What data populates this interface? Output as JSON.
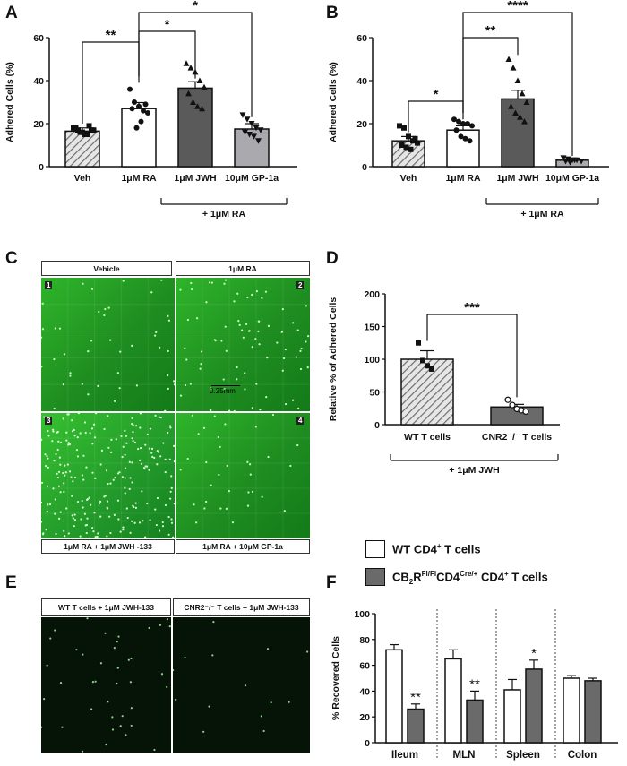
{
  "panels": {
    "A": "A",
    "B": "B",
    "C": "C",
    "D": "D",
    "E": "E",
    "F": "F"
  },
  "colors": {
    "veh": "#c8c8c8",
    "ra": "#ffffff",
    "jwh": "#5a5a5a",
    "gp": "#a9a9ae",
    "micro_green": "#2fae2a",
    "micro_dark": "#07170a",
    "wt": "#ffffff",
    "ko": "#6a6a6a"
  },
  "chart_data": [
    {
      "id": "A",
      "type": "bar",
      "ylabel": "Adhered Cells (%)",
      "ylim": [
        0,
        60
      ],
      "yticks": [
        0,
        20,
        40,
        60
      ],
      "categories": [
        "Veh",
        "1μM RA",
        "1μM JWH",
        "10μM GP-1a"
      ],
      "values": [
        16.5,
        27,
        36.5,
        17.5
      ],
      "sem": [
        1.5,
        2.8,
        3,
        2.5
      ],
      "group_label": "+ 1μM RA",
      "points": [
        [
          18,
          17,
          16,
          15,
          17,
          18,
          16,
          15,
          19,
          17
        ],
        [
          36,
          30,
          28,
          26,
          25,
          27,
          18,
          21,
          29
        ],
        [
          48,
          46,
          44,
          40,
          37,
          34,
          30,
          28,
          27
        ],
        [
          24,
          22,
          20,
          18,
          17,
          16,
          15,
          14,
          12
        ]
      ],
      "markers": [
        "square",
        "circle",
        "triangle",
        "tri-down"
      ],
      "significance": [
        {
          "from": 0,
          "to": 1,
          "label": "**"
        },
        {
          "from": 1,
          "to": 2,
          "label": "*"
        },
        {
          "from": 1,
          "to": 3,
          "label": "*"
        }
      ]
    },
    {
      "id": "B",
      "type": "bar",
      "ylabel": "Adhered Cells (%)",
      "ylim": [
        0,
        60
      ],
      "yticks": [
        0,
        20,
        40,
        60
      ],
      "categories": [
        "Veh",
        "1μM RA",
        "1μM JWH",
        "10μM GP-1a"
      ],
      "values": [
        12,
        17,
        31.5,
        3
      ],
      "sem": [
        2,
        2,
        4,
        0.5
      ],
      "group_label": "+ 1μM RA",
      "points": [
        [
          19,
          18,
          14,
          12,
          11,
          10,
          9,
          8,
          13
        ],
        [
          22,
          21,
          20,
          20,
          19,
          17,
          14,
          13,
          12
        ],
        [
          50,
          46,
          40,
          34,
          30,
          28,
          25,
          23,
          21
        ],
        [
          4,
          3.5,
          3,
          3,
          2.5,
          2.5,
          2,
          3
        ]
      ],
      "markers": [
        "square",
        "circle",
        "triangle",
        "tri-down"
      ],
      "significance": [
        {
          "from": 0,
          "to": 1,
          "label": "*"
        },
        {
          "from": 1,
          "to": 2,
          "label": "**"
        },
        {
          "from": 1,
          "to": 3,
          "label": "****"
        }
      ]
    },
    {
      "id": "D",
      "type": "bar",
      "ylabel": "Relative % of Adhered Cells",
      "ylim": [
        0,
        200
      ],
      "yticks": [
        0,
        50,
        100,
        150,
        200
      ],
      "categories": [
        "WT T cells",
        "CNR2⁻/⁻ T cells"
      ],
      "values": [
        100,
        27
      ],
      "sem": [
        13,
        4
      ],
      "group_label": "+ 1μM JWH",
      "points": [
        [
          125,
          98,
          90,
          85
        ],
        [
          38,
          30,
          24,
          22,
          20
        ]
      ],
      "markers": [
        "square",
        "open-circle"
      ],
      "significance": [
        {
          "from": 0,
          "to": 1,
          "label": "***"
        }
      ]
    },
    {
      "id": "F",
      "type": "bar",
      "ylabel": "% Recovered Cells",
      "ylim": [
        0,
        100
      ],
      "yticks": [
        0,
        20,
        40,
        60,
        80,
        100
      ],
      "categories": [
        "Ileum",
        "MLN",
        "Spleen",
        "Colon"
      ],
      "series": [
        {
          "name": "WT CD4⁺ T cells",
          "values": [
            72,
            65,
            41,
            50
          ],
          "sem": [
            4,
            7,
            8,
            2
          ]
        },
        {
          "name": "CB₂R^Fl/Fl CD4^Cre/+ CD4⁺ T cells",
          "values": [
            26,
            33,
            57,
            48
          ],
          "sem": [
            4,
            7,
            7,
            2
          ]
        }
      ],
      "significance_labels": [
        "**",
        "**",
        "*",
        ""
      ],
      "legend": "top"
    }
  ],
  "micro_C": {
    "labels": [
      "Vehicle",
      "1μM RA",
      "1μM RA + 1μM JWH -133",
      "1μM RA + 10μM GP-1a"
    ],
    "numbers": [
      "1",
      "2",
      "3",
      "4"
    ],
    "scale": "0.25mm"
  },
  "micro_E": {
    "labels": [
      "WT T cells + 1μM JWH-133",
      "CNR2⁻/⁻ T cells + 1μM JWH-133"
    ]
  },
  "legend_F": {
    "wt": "WT CD4",
    "ko": "CB"
  }
}
